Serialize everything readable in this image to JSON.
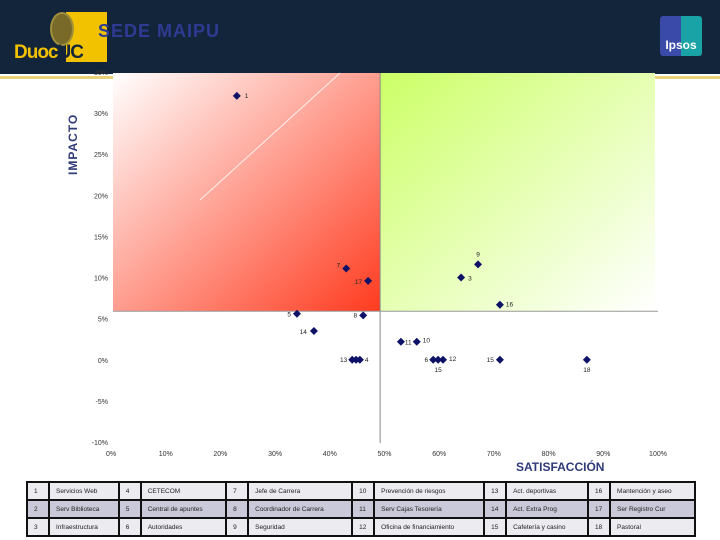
{
  "header": {
    "title": "SEDE MAIPU",
    "logo_left": "DuocUC",
    "logo_right": "Ipsos"
  },
  "colors": {
    "header_bg": "#13253a",
    "title": "#2f3a92",
    "point": "#0d1266",
    "quadrant_top_left": "#ff3b1f",
    "quadrant_top_right": "#ccff66"
  },
  "chart_data": {
    "type": "scatter",
    "xlabel": "SATISFACCIÓN",
    "ylabel": "IMPACTO",
    "xlim": [
      0,
      100
    ],
    "ylim": [
      -10,
      35
    ],
    "x_ticks": [
      "0%",
      "10%",
      "20%",
      "30%",
      "40%",
      "50%",
      "60%",
      "70%",
      "80%",
      "90%",
      "100%"
    ],
    "y_ticks": [
      "35%",
      "30%",
      "25%",
      "20%",
      "15%",
      "10%",
      "5%",
      "0%",
      "-5%",
      "-10%"
    ],
    "reference_lines": {
      "x": 49.2,
      "y": 5.9
    },
    "points": [
      {
        "label": "1",
        "x": 23.0,
        "y": 32.1
      },
      {
        "label": "9",
        "x": 67.1,
        "y": 11.6
      },
      {
        "label": "3",
        "x": 64.0,
        "y": 10.0
      },
      {
        "label": "7",
        "x": 43.0,
        "y": 11.1
      },
      {
        "label": "17",
        "x": 47.0,
        "y": 9.6
      },
      {
        "label": "16",
        "x": 71.1,
        "y": 6.7
      },
      {
        "label": "5",
        "x": 34.0,
        "y": 5.6
      },
      {
        "label": "8",
        "x": 46.1,
        "y": 5.4
      },
      {
        "label": "14",
        "x": 37.1,
        "y": 3.5
      },
      {
        "label": "11",
        "x": 53.0,
        "y": 2.2
      },
      {
        "label": "10",
        "x": 55.9,
        "y": 2.2
      },
      {
        "label": "13",
        "x": 44.1,
        "y": 0
      },
      {
        "label": "",
        "x": 44.8,
        "y": 0
      },
      {
        "label": "4",
        "x": 45.5,
        "y": 0
      },
      {
        "label": "6",
        "x": 58.9,
        "y": 0
      },
      {
        "label": "15",
        "x": 59.8,
        "y": 0
      },
      {
        "label": "12",
        "x": 60.7,
        "y": 0
      },
      {
        "label": "15",
        "x": 71.1,
        "y": 0
      },
      {
        "label": "18",
        "x": 87.0,
        "y": 0
      }
    ]
  },
  "legend_table": [
    [
      [
        "1",
        "Servicios Web"
      ],
      [
        "4",
        "CETECOM"
      ],
      [
        "7",
        "Jefe de Carrera"
      ],
      [
        "10",
        "Prevención de riesgos"
      ],
      [
        "13",
        "Act. deportivas"
      ],
      [
        "16",
        "Mantención y aseo"
      ]
    ],
    [
      [
        "2",
        "Serv Biblioteca"
      ],
      [
        "5",
        "Central de apuntes"
      ],
      [
        "8",
        "Coordinador de Carrera"
      ],
      [
        "11",
        "Serv Cajas Tesorería"
      ],
      [
        "14",
        "Act. Extra Prog"
      ],
      [
        "17",
        "Ser Registro Cur"
      ]
    ],
    [
      [
        "3",
        "Infraestructura"
      ],
      [
        "6",
        "Autoridades"
      ],
      [
        "9",
        "Seguridad"
      ],
      [
        "12",
        "Oficina de financiamiento"
      ],
      [
        "15",
        "Cafetería y casino"
      ],
      [
        "18",
        "Pastoral"
      ]
    ]
  ]
}
